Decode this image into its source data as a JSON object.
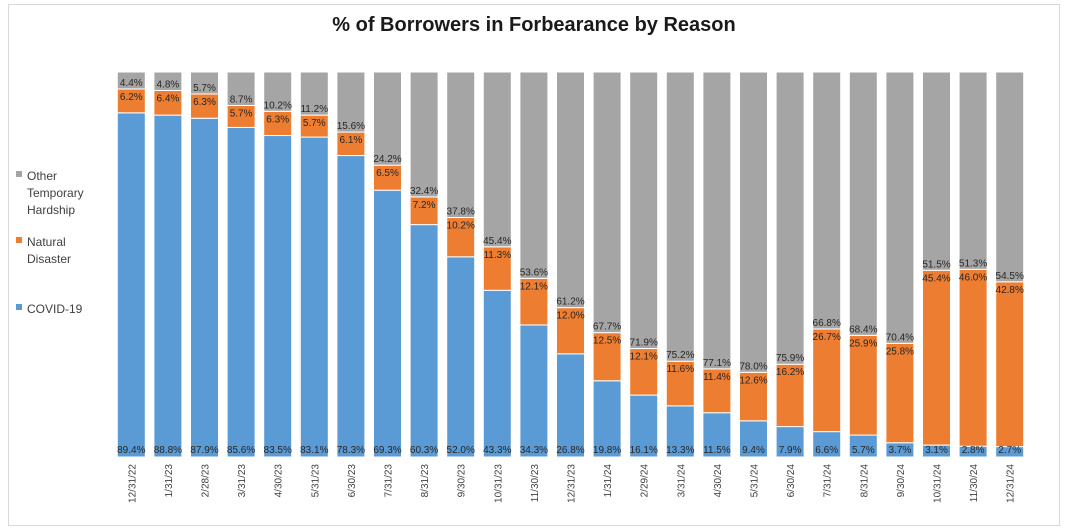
{
  "chart_data": {
    "type": "bar",
    "stacked": true,
    "title": "% of Borrowers in Forbearance by Reason",
    "categories": [
      "12/31/22",
      "1/31/23",
      "2/28/23",
      "3/31/23",
      "4/30/23",
      "5/31/23",
      "6/30/23",
      "7/31/23",
      "8/31/23",
      "9/30/23",
      "10/31/23",
      "11/30/23",
      "12/31/23",
      "1/31/24",
      "2/29/24",
      "3/31/24",
      "4/30/24",
      "5/31/24",
      "6/30/24",
      "7/31/24",
      "8/31/24",
      "9/30/24",
      "10/31/24",
      "11/30/24",
      "12/31/24"
    ],
    "series": [
      {
        "name": "COVID-19",
        "color": "#5b9bd5",
        "values": [
          89.4,
          88.8,
          87.9,
          85.6,
          83.5,
          83.1,
          78.3,
          69.3,
          60.3,
          52.0,
          43.3,
          34.3,
          26.8,
          19.8,
          16.1,
          13.3,
          11.5,
          9.4,
          7.9,
          6.6,
          5.7,
          3.7,
          3.1,
          2.8,
          2.7
        ],
        "labels": [
          "89.4%",
          "88.8%",
          "87.9%",
          "85.6%",
          "83.5%",
          "83.1%",
          "78.3%",
          "69.3%",
          "60.3%",
          "52.0%",
          "43.3%",
          "34.3%",
          "26.8%",
          "19.8%",
          "16.1%",
          "13.3%",
          "11.5%",
          "9.4%",
          "7.9%",
          "6.6%",
          "5.7%",
          "3.7%",
          "3.1%",
          "2.8%",
          "2.7%"
        ]
      },
      {
        "name": "Natural Disaster",
        "color": "#ed7d31",
        "values": [
          6.2,
          6.4,
          6.3,
          5.7,
          6.3,
          5.7,
          6.1,
          6.5,
          7.2,
          10.2,
          11.3,
          12.1,
          12.0,
          12.5,
          12.1,
          11.6,
          11.4,
          12.6,
          16.2,
          26.7,
          25.9,
          25.8,
          45.4,
          46.0,
          42.8
        ],
        "labels": [
          "6.2%",
          "6.4%",
          "6.3%",
          "5.7%",
          "6.3%",
          "5.7%",
          "6.1%",
          "6.5%",
          "7.2%",
          "10.2%",
          "11.3%",
          "12.1%",
          "12.0%",
          "12.5%",
          "12.1%",
          "11.6%",
          "11.4%",
          "12.6%",
          "16.2%",
          "26.7%",
          "25.9%",
          "25.8%",
          "45.4%",
          "46.0%",
          "42.8%"
        ]
      },
      {
        "name": "Other Temporary Hardship",
        "color": "#a5a5a5",
        "values": [
          4.4,
          4.8,
          5.7,
          8.7,
          10.2,
          11.2,
          15.6,
          24.2,
          32.4,
          37.8,
          45.4,
          53.6,
          61.2,
          67.7,
          71.9,
          75.2,
          77.1,
          78.0,
          75.9,
          66.8,
          68.4,
          70.4,
          51.5,
          51.3,
          54.5
        ],
        "labels": [
          "4.4%",
          "4.8%",
          "5.7%",
          "8.7%",
          "10.2%",
          "11.2%",
          "15.6%",
          "24.2%",
          "32.4%",
          "37.8%",
          "45.4%",
          "53.6%",
          "61.2%",
          "67.7%",
          "71.9%",
          "75.2%",
          "77.1%",
          "78.0%",
          "75.9%",
          "66.8%",
          "68.4%",
          "70.4%",
          "51.5%",
          "51.3%",
          "54.5%"
        ]
      }
    ],
    "legend": {
      "position": "left",
      "items": [
        {
          "series": 2,
          "lines": [
            "Other",
            "Temporary",
            "Hardship"
          ]
        },
        {
          "series": 1,
          "lines": [
            "Natural",
            "Disaster"
          ]
        },
        {
          "series": 0,
          "lines": [
            "COVID-19"
          ]
        }
      ]
    },
    "ylim": [
      0,
      100
    ],
    "grid": false
  }
}
